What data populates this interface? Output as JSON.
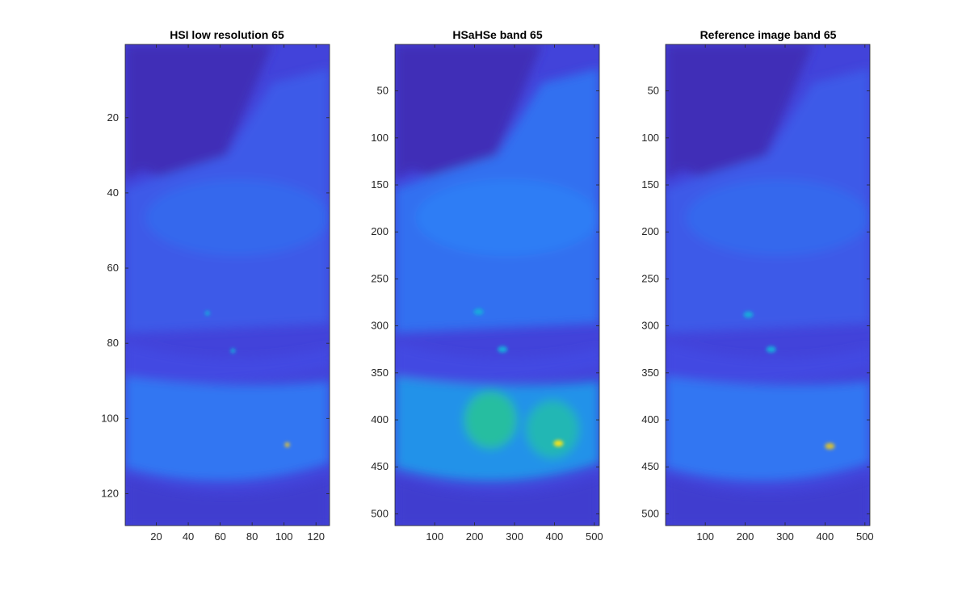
{
  "colors": {
    "background": "#ffffff",
    "axis": "#262626",
    "colormap": "parula"
  },
  "chart_data": [
    {
      "type": "heatmap",
      "title": "HSI low resolution 65",
      "xlim": [
        0.5,
        128.5
      ],
      "ylim": [
        0.5,
        128.5
      ],
      "y_direction": "reverse",
      "xticks": [
        20,
        40,
        60,
        80,
        100,
        120
      ],
      "yticks": [
        20,
        40,
        60,
        80,
        100,
        120
      ],
      "xtick_labels": [
        "20",
        "40",
        "60",
        "80",
        "100",
        "120"
      ],
      "ytick_labels": [
        "20",
        "40",
        "60",
        "80",
        "100",
        "120"
      ],
      "grid": false,
      "features": {
        "hot_spots": [
          {
            "x": 102,
            "y": 107,
            "value": 0.9
          },
          {
            "x": 68,
            "y": 82,
            "value": 0.45
          },
          {
            "x": 52,
            "y": 72,
            "value": 0.45
          }
        ],
        "dark_upper_left_region": true,
        "bright_band_rows": [
          93,
          112
        ]
      }
    },
    {
      "type": "heatmap",
      "title": "HSaHSe band 65",
      "xlim": [
        0.5,
        512.5
      ],
      "ylim": [
        0.5,
        512.5
      ],
      "y_direction": "reverse",
      "xticks": [
        100,
        200,
        300,
        400,
        500
      ],
      "yticks": [
        50,
        100,
        150,
        200,
        250,
        300,
        350,
        400,
        450,
        500
      ],
      "xtick_labels": [
        "100",
        "200",
        "300",
        "400",
        "500"
      ],
      "ytick_labels": [
        "50",
        "100",
        "150",
        "200",
        "250",
        "300",
        "350",
        "400",
        "450",
        "500"
      ],
      "grid": false,
      "features": {
        "hot_spots": [
          {
            "x": 410,
            "y": 425,
            "value": 0.95
          },
          {
            "x": 270,
            "y": 325,
            "value": 0.45
          },
          {
            "x": 210,
            "y": 285,
            "value": 0.45
          }
        ],
        "bright_regions": [
          {
            "center_x": 240,
            "center_y": 400,
            "value": 0.6
          },
          {
            "center_x": 395,
            "center_y": 410,
            "value": 0.55
          }
        ]
      }
    },
    {
      "type": "heatmap",
      "title": "Reference image band 65",
      "xlim": [
        0.5,
        512.5
      ],
      "ylim": [
        0.5,
        512.5
      ],
      "y_direction": "reverse",
      "xticks": [
        100,
        200,
        300,
        400,
        500
      ],
      "yticks": [
        50,
        100,
        150,
        200,
        250,
        300,
        350,
        400,
        450,
        500
      ],
      "xtick_labels": [
        "100",
        "200",
        "300",
        "400",
        "500"
      ],
      "ytick_labels": [
        "50",
        "100",
        "150",
        "200",
        "250",
        "300",
        "350",
        "400",
        "450",
        "500"
      ],
      "grid": false,
      "features": {
        "hot_spots": [
          {
            "x": 412,
            "y": 428,
            "value": 0.85
          },
          {
            "x": 265,
            "y": 325,
            "value": 0.45
          },
          {
            "x": 208,
            "y": 288,
            "value": 0.45
          }
        ]
      }
    }
  ]
}
